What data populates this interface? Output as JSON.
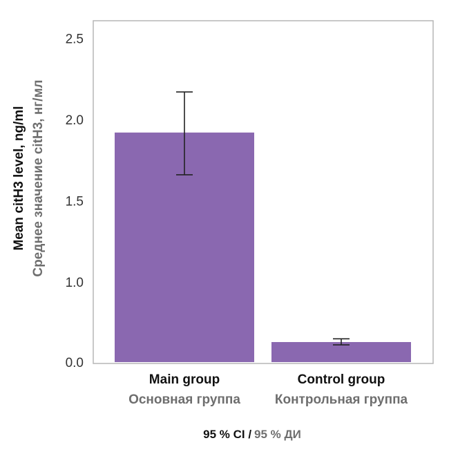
{
  "chart_data": {
    "type": "bar",
    "categories": [
      {
        "en": "Main group",
        "ru": "Основная группа"
      },
      {
        "en": "Control group",
        "ru": "Контрольная группа"
      }
    ],
    "values": [
      1.92,
      0.25
    ],
    "ci_lower": [
      1.66,
      0.215
    ],
    "ci_upper": [
      2.17,
      0.29
    ],
    "ylabel_en": "Mean citH3 level, ng/ml",
    "ylabel_ru": "Среднее значение citH3, нг/мл",
    "ylim": [
      0,
      2.5
    ],
    "yticks": [
      "0.0",
      "1.0",
      "1.5",
      "2.0",
      "2.5"
    ],
    "note_en": "95 % CI /",
    "note_ru": "95 % ДИ",
    "bar_color": "#8a68b0",
    "grid": false
  }
}
